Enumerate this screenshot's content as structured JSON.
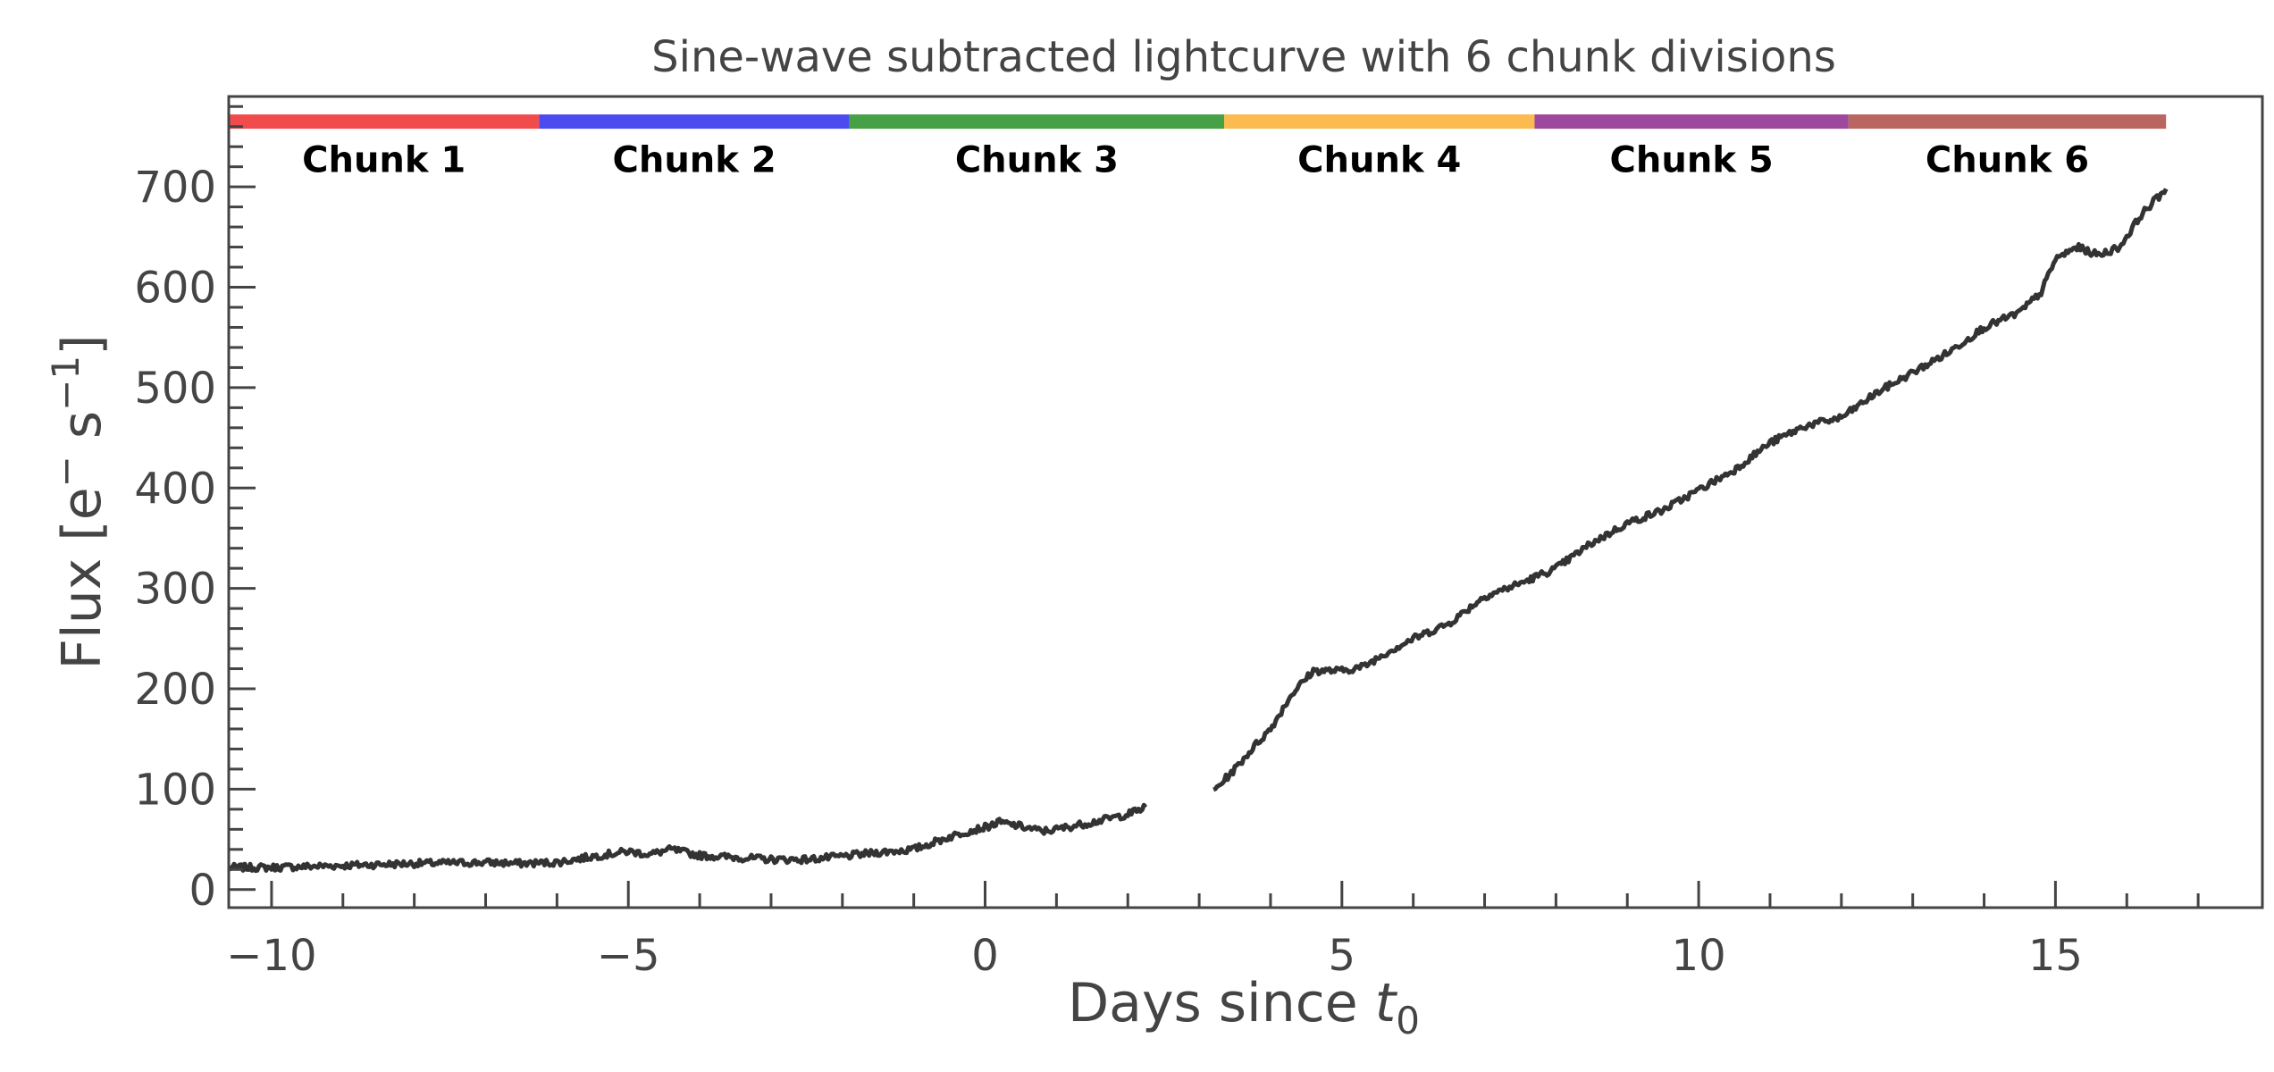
{
  "chart_data": {
    "type": "line",
    "title": "Sine-wave subtracted lightcurve with 6 chunk divisions",
    "xlabel": "Days since",
    "xlabel_symbol": "t",
    "xlabel_subscript": "0",
    "ylabel": "Flux [e",
    "ylabel_sup1": "−",
    "ylabel_mid": " s",
    "ylabel_sup2": "−1",
    "ylabel_end": "]",
    "xlim": [
      -10.6,
      17.9
    ],
    "ylim": [
      -18,
      790
    ],
    "xticks": [
      -10,
      -5,
      0,
      5,
      10,
      15
    ],
    "xtick_labels": [
      "−10",
      "−5",
      "0",
      "5",
      "10",
      "15"
    ],
    "yticks": [
      0,
      100,
      200,
      300,
      400,
      500,
      600,
      700
    ],
    "ytick_labels": [
      "0",
      "100",
      "200",
      "300",
      "400",
      "500",
      "600",
      "700"
    ],
    "grid": false,
    "line_color": "#333333",
    "chunks": [
      {
        "label": "Chunk 1",
        "start": -10.6,
        "end": -6.25,
        "color": "#f24b4b"
      },
      {
        "label": "Chunk 2",
        "start": -6.25,
        "end": -1.9,
        "color": "#4b4bef"
      },
      {
        "label": "Chunk 3",
        "start": -1.9,
        "end": 3.35,
        "color": "#46a046"
      },
      {
        "label": "Chunk 4",
        "start": 3.35,
        "end": 7.7,
        "color": "#fbbb4f"
      },
      {
        "label": "Chunk 5",
        "start": 7.7,
        "end": 12.1,
        "color": "#9e479e"
      },
      {
        "label": "Chunk 6",
        "start": 12.1,
        "end": 16.55,
        "color": "#b8665f"
      }
    ],
    "chunk_band_y": 765,
    "chunk_label_y": 715,
    "series": [
      {
        "segments": [
          {
            "x": [
              -10.6,
              -10.0,
              -9.0,
              -8.0,
              -7.0,
              -6.5,
              -6.0,
              -5.5,
              -5.0,
              -4.7,
              -4.4,
              -4.0,
              -3.5,
              -3.0,
              -2.5,
              -2.0,
              -1.5,
              -1.0,
              -0.6,
              -0.3,
              0.0,
              0.2,
              0.5,
              0.8,
              1.0,
              1.5,
              2.0,
              2.25
            ],
            "y": [
              22,
              22,
              24,
              26,
              27,
              26,
              27,
              33,
              38,
              35,
              40,
              34,
              32,
              30,
              30,
              33,
              37,
              40,
              50,
              57,
              62,
              67,
              63,
              58,
              60,
              67,
              75,
              82
            ]
          },
          {
            "x": [
              3.2,
              3.5,
              3.8,
              4.0,
              4.3,
              4.6,
              5.0,
              5.3,
              5.6,
              6.0,
              6.5,
              7.0,
              7.5,
              8.0,
              8.5,
              9.0,
              9.5,
              10.0,
              10.5,
              11.0,
              11.5,
              12.0,
              12.5,
              13.0,
              13.5,
              14.0,
              14.5,
              14.8,
              15.0,
              15.3,
              15.6,
              15.9,
              16.2,
              16.55
            ],
            "y": [
              98,
              120,
              145,
              160,
              195,
              218,
              218,
              222,
              235,
              250,
              265,
              292,
              305,
              320,
              345,
              365,
              378,
              398,
              418,
              445,
              462,
              470,
              495,
              515,
              535,
              560,
              575,
              595,
              628,
              640,
              632,
              640,
              672,
              698
            ]
          }
        ]
      }
    ]
  }
}
